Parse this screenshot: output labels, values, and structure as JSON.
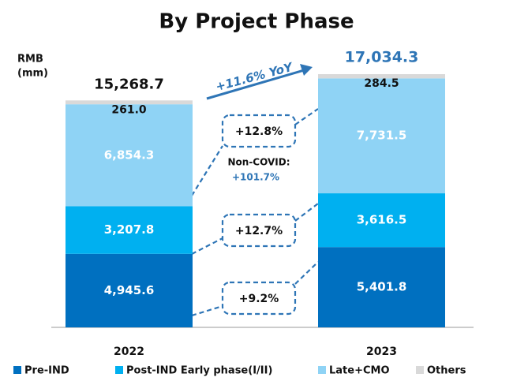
{
  "chart_data": {
    "type": "stacked-bar",
    "title": "By Project Phase",
    "unit_label": [
      "RMB",
      "(mm)"
    ],
    "categories": [
      "2022",
      "2023"
    ],
    "series": [
      {
        "name": "Pre-IND",
        "color": "#0070c0",
        "values": [
          4945.6,
          5401.8
        ],
        "value_labels": [
          "4,945.6",
          "5,401.8"
        ]
      },
      {
        "name": "Post-IND Early phase(I/II)",
        "color": "#00b0f0",
        "values": [
          3207.8,
          3616.5
        ],
        "value_labels": [
          "3,207.8",
          "3,616.5"
        ]
      },
      {
        "name": "Late+CMO",
        "color": "#8fd3f5",
        "values": [
          6854.3,
          7731.5
        ],
        "value_labels": [
          "6,854.3",
          "7,731.5"
        ]
      },
      {
        "name": "Others",
        "color": "#d9d9d9",
        "values": [
          261.0,
          284.5
        ],
        "value_labels": [
          "261.0",
          "284.5"
        ]
      }
    ],
    "totals": [
      15268.7,
      17034.3
    ],
    "total_labels": [
      "15,268.7",
      "17,034.3"
    ],
    "annotations": [
      "+11.6% YoY",
      "+12.8%",
      "Non-COVID:",
      "+101.7%",
      "+12.7%",
      "+9.2%"
    ]
  }
}
